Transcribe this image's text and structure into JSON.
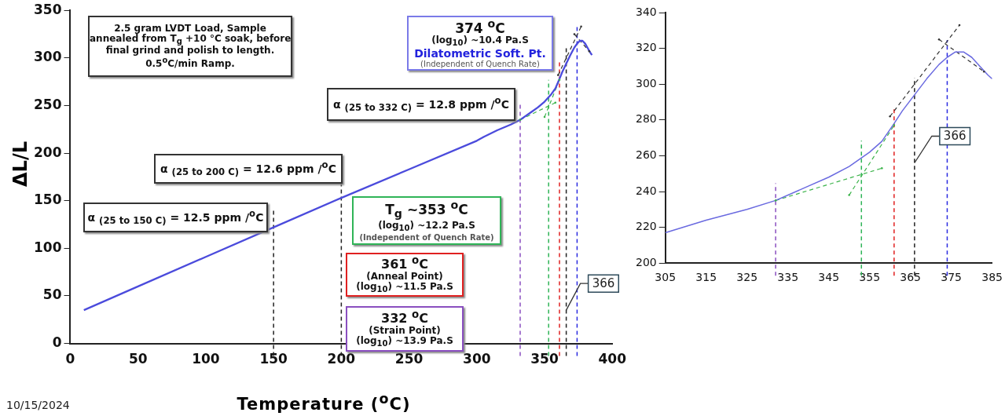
{
  "chart_data": [
    {
      "type": "line",
      "xlabel": "Temperature ($^{o}$C)",
      "ylabel": "ΔL/L",
      "xlim": [
        0,
        400
      ],
      "xticks": [
        0,
        50,
        100,
        150,
        200,
        250,
        300,
        350,
        400
      ],
      "ylim": [
        0,
        350
      ],
      "yticks": [
        0,
        50,
        100,
        150,
        200,
        250,
        300,
        350
      ],
      "grid": false,
      "legend": false,
      "marker": "none",
      "series": [
        {
          "color": "#4b4bdc",
          "line_style": "solid",
          "x": [
            10,
            50,
            100,
            150,
            200,
            250,
            300,
            305,
            315,
            325,
            332,
            340,
            345,
            350,
            355,
            358,
            361,
            363,
            366,
            369,
            372,
            374,
            376,
            378,
            380,
            382,
            384,
            385
          ],
          "values": [
            35,
            60,
            91,
            122,
            153,
            183,
            213,
            217,
            224,
            230,
            235,
            243,
            248,
            254,
            262,
            268,
            278,
            285,
            294,
            303,
            311,
            315,
            318,
            318,
            315,
            310,
            305,
            303
          ]
        },
        {
          "color": "#3cb44b",
          "line_style": "dashed",
          "x": [
            332,
            358
          ],
          "values": [
            235,
            253
          ]
        },
        {
          "color": "#3cb44b",
          "line_style": "dashed",
          "x": [
            350,
            361
          ],
          "values": [
            238,
            277
          ]
        },
        {
          "color": "#333333",
          "line_style": "dashed",
          "x": [
            360,
            377
          ],
          "values": [
            282,
            333
          ]
        },
        {
          "color": "#333333",
          "line_style": "dashed",
          "x": [
            372,
            383
          ],
          "values": [
            325,
            307
          ]
        }
      ],
      "ref_lines": [
        {
          "axis": "x",
          "value": 150,
          "color": "#222222",
          "line_style": "dashed"
        },
        {
          "axis": "x",
          "value": 200,
          "color": "#222222",
          "line_style": "dashed"
        },
        {
          "axis": "x",
          "value": 332,
          "color": "#8a4fc0",
          "line_style": "dashed"
        },
        {
          "axis": "x",
          "value": 353,
          "color": "#2fb457",
          "line_style": "dashed"
        },
        {
          "axis": "x",
          "value": 361,
          "color": "#e02020",
          "line_style": "dashed"
        },
        {
          "axis": "x",
          "value": 366,
          "color": "#222222",
          "line_style": "dashed",
          "label": "366"
        },
        {
          "axis": "x",
          "value": 374,
          "color": "#2a2ae0",
          "line_style": "dashed"
        }
      ],
      "annotations": [
        "2.5 gram LVDT Load, Sample\nannealed from T$_{g}$ +10 °C soak, before\nfinal grind and polish to length.\n0.5$^{o}$C/min Ramp.",
        "α $_{(25 to 150 C)}$ = 12.5 ppm /$^{o}$C",
        "α $_{(25 to 200 C)}$ = 12.6 ppm /$^{o}$C",
        "α $_{(25 to 332 C)}$ = 12.8 ppm /$^{o}$C",
        "374 $^{o}$C\n(log$_{10}$) ~10.4 Pa.S\nDilatometric Soft. Pt.\n(Independent of Quench Rate)",
        "T$_{g}$ ~353 $^{o}$C\n(log$_{10}$) ~12.2 Pa.S\n(Independent of Quench Rate)",
        "361 $^{o}$C\n(Anneal Point)\n(log$_{10}$) ~11.5 Pa.S",
        "332 $^{o}$C\n(Strain Point)\n(log$_{10}$) ~13.9 Pa.S",
        "10/15/2024"
      ]
    },
    {
      "type": "line",
      "xlim": [
        305,
        385
      ],
      "xticks": [
        305,
        315,
        325,
        335,
        345,
        355,
        365,
        375,
        385
      ],
      "ylim": [
        200,
        340
      ],
      "yticks": [
        200,
        220,
        240,
        260,
        280,
        300,
        320,
        340
      ],
      "grid": false,
      "legend": false,
      "marker": "none",
      "series": [
        {
          "color": "#6a6ae0",
          "line_style": "solid",
          "x": [
            305,
            315,
            325,
            332,
            340,
            345,
            350,
            355,
            358,
            361,
            363,
            366,
            369,
            372,
            374,
            376,
            378,
            380,
            382,
            384,
            385
          ],
          "values": [
            217,
            224,
            230,
            235,
            243,
            248,
            254,
            262,
            268,
            278,
            285,
            294,
            303,
            311,
            315,
            318,
            318,
            315,
            310,
            305,
            303
          ]
        },
        {
          "color": "#3cb44b",
          "line_style": "dashed",
          "x": [
            332,
            358
          ],
          "values": [
            235,
            253
          ]
        },
        {
          "color": "#3cb44b",
          "line_style": "dashed",
          "x": [
            350,
            361
          ],
          "values": [
            238,
            277
          ]
        },
        {
          "color": "#333333",
          "line_style": "dashed",
          "x": [
            360,
            377
          ],
          "values": [
            282,
            333
          ]
        },
        {
          "color": "#333333",
          "line_style": "dashed",
          "x": [
            372,
            383
          ],
          "values": [
            325,
            307
          ]
        }
      ],
      "ref_lines": [
        {
          "axis": "x",
          "value": 332,
          "color": "#8a4fc0",
          "line_style": "dashed"
        },
        {
          "axis": "x",
          "value": 353,
          "color": "#2fb457",
          "line_style": "dashed"
        },
        {
          "axis": "x",
          "value": 361,
          "color": "#e02020",
          "line_style": "dashed"
        },
        {
          "axis": "x",
          "value": 366,
          "color": "#222222",
          "line_style": "dashed",
          "label": "366"
        },
        {
          "axis": "x",
          "value": 374,
          "color": "#2a2ae0",
          "line_style": "dashed"
        }
      ]
    }
  ]
}
